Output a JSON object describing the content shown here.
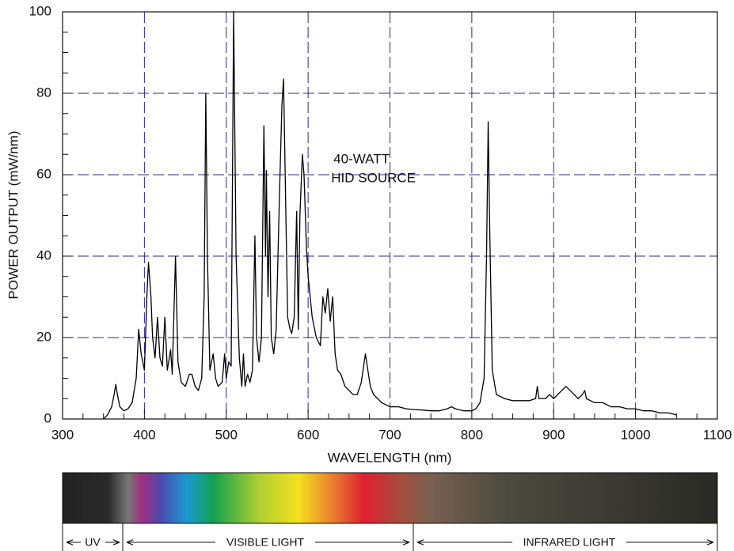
{
  "chart_data": {
    "type": "line",
    "annotations": [
      "40-WATT",
      "HID SOURCE"
    ],
    "xlabel": "WAVELENGTH  (nm)",
    "ylabel": "POWER  OUTPUT  (mW/nm)",
    "xlim": [
      300,
      1100
    ],
    "ylim": [
      0,
      100
    ],
    "xticks": [
      300,
      400,
      500,
      600,
      700,
      800,
      900,
      1000,
      1100
    ],
    "yticks": [
      0,
      20,
      40,
      60,
      80,
      100
    ],
    "xticks_minor": [
      325,
      350,
      375,
      425,
      450,
      475,
      525,
      550,
      575,
      625,
      650,
      675,
      725,
      750,
      775,
      825,
      850,
      875,
      925,
      950,
      975,
      1025,
      1050,
      1075
    ],
    "yticks_minor": [
      5,
      10,
      15,
      25,
      30,
      35,
      45,
      50,
      55,
      65,
      70,
      75,
      85,
      90,
      95
    ],
    "grid": true,
    "x": [
      350,
      355,
      360,
      363,
      365,
      367,
      370,
      375,
      380,
      385,
      390,
      393,
      396,
      400,
      403,
      405,
      408,
      410,
      413,
      416,
      419,
      422,
      425,
      428,
      432,
      434,
      438,
      441,
      445,
      450,
      455,
      458,
      462,
      466,
      470,
      473,
      475,
      477,
      480,
      484,
      487,
      490,
      495,
      498,
      500,
      503,
      506,
      509,
      512,
      516,
      519,
      521,
      523,
      526,
      529,
      532,
      535,
      537,
      540,
      543,
      546,
      548,
      549,
      551,
      553,
      555,
      558,
      561,
      565,
      568,
      570,
      572,
      575,
      578,
      580,
      583,
      586,
      588,
      590,
      593,
      595,
      598,
      600,
      605,
      610,
      615,
      618,
      621,
      624,
      627,
      630,
      633,
      636,
      640,
      645,
      650,
      655,
      660,
      665,
      670,
      673,
      676,
      680,
      685,
      690,
      700,
      710,
      720,
      730,
      740,
      750,
      760,
      770,
      775,
      780,
      790,
      800,
      805,
      810,
      815,
      818,
      820,
      822,
      825,
      830,
      840,
      850,
      860,
      870,
      878,
      880,
      882,
      890,
      895,
      900,
      905,
      910,
      915,
      920,
      925,
      930,
      935,
      938,
      940,
      950,
      960,
      970,
      980,
      990,
      1000,
      1010,
      1020,
      1030,
      1040,
      1050
    ],
    "series": [
      {
        "color": "#000000",
        "values": [
          0,
          1,
          3,
          6,
          8.5,
          6,
          3,
          2,
          2.5,
          4,
          10,
          22,
          16,
          12,
          30,
          38.5,
          30,
          20,
          15,
          25,
          15,
          13,
          25,
          12,
          17,
          11,
          40,
          14,
          9,
          8,
          11,
          11,
          8,
          7,
          10,
          30,
          80,
          40,
          12,
          16,
          10,
          8,
          9,
          16,
          10,
          14,
          13,
          100,
          40,
          15,
          8,
          16,
          8,
          11,
          9,
          12,
          45,
          20,
          14,
          20,
          72,
          40,
          61,
          30,
          51,
          20,
          16,
          22,
          55,
          77,
          83.5,
          60,
          25,
          22,
          21,
          25,
          51,
          22,
          50,
          65,
          60,
          42,
          35,
          25,
          20,
          18,
          30,
          26,
          32,
          24,
          30,
          16,
          12,
          11,
          8,
          7,
          6,
          6,
          9,
          16,
          12,
          8,
          6,
          5,
          4,
          3,
          3,
          2.5,
          2.3,
          2.2,
          2,
          2,
          2.5,
          3,
          2.5,
          2,
          2,
          2.5,
          4,
          10,
          40,
          73,
          45,
          12,
          6,
          5,
          4.5,
          4.5,
          4.5,
          5,
          8,
          5,
          5,
          6,
          5,
          6,
          7,
          8,
          7,
          6,
          5,
          6,
          7,
          5,
          4,
          4,
          3,
          3,
          2.5,
          2.5,
          2,
          2,
          1.5,
          1.5,
          1
        ]
      }
    ]
  },
  "spectrum_regions": [
    "UV",
    "VISIBLE LIGHT",
    "INFRARED LIGHT"
  ]
}
